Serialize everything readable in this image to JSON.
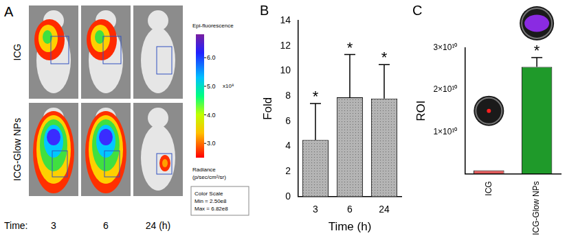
{
  "image_panel": {
    "panel": "A",
    "rows": [
      "ICG",
      "ICG-Glow NPs"
    ],
    "time_label": "Time:",
    "times": [
      "3",
      "6",
      "24 (h)"
    ],
    "colorbar": {
      "title": "Epi-fluorescence",
      "range": [
        2.5,
        6.82
      ],
      "ticks": [
        {
          "value": 6,
          "label": "6.0"
        },
        {
          "value": 5,
          "label": "5.0"
        },
        {
          "value": 4,
          "label": "4.0"
        },
        {
          "value": 3,
          "label": "3.0"
        }
      ],
      "multiplier": "x10⁸",
      "unit_label": "Radiance",
      "unit": "(p/sec/cm²/sr)",
      "scale_box": [
        "Color Scale",
        "Min = 2.50e8",
        "Max = 6.82e8"
      ]
    }
  },
  "chart_data": [
    {
      "panel": "B",
      "type": "bar",
      "categories": [
        "3",
        "6",
        "24"
      ],
      "values": [
        4.5,
        7.9,
        7.8
      ],
      "errors": [
        2.9,
        3.4,
        2.7
      ],
      "annotations": [
        "*",
        "*",
        "*"
      ],
      "color": "#b4b4b4",
      "x_label": "Time (h)",
      "y_label": "Fold",
      "ylim": [
        0,
        14
      ],
      "yticks": [
        0,
        2,
        4,
        6,
        8,
        10,
        12,
        14
      ],
      "grid": false
    },
    {
      "panel": "C",
      "type": "bar",
      "categories": [
        "ICG",
        "ICG-Glow NPs"
      ],
      "values": [
        800000000,
        25500000000
      ],
      "errors": [
        0,
        2200000000
      ],
      "annotations": [
        null,
        "*"
      ],
      "colors": [
        "#e05a5a",
        "#1f9a2a"
      ],
      "y_label": "ROI",
      "ylim": [
        0,
        30000000000
      ],
      "yticks": [
        {
          "value": 10000000000,
          "label": "1×10¹⁰"
        },
        {
          "value": 20000000000,
          "label": "2×10¹⁰"
        },
        {
          "value": 30000000000,
          "label": "3×10¹⁰"
        }
      ],
      "grid": false
    }
  ]
}
